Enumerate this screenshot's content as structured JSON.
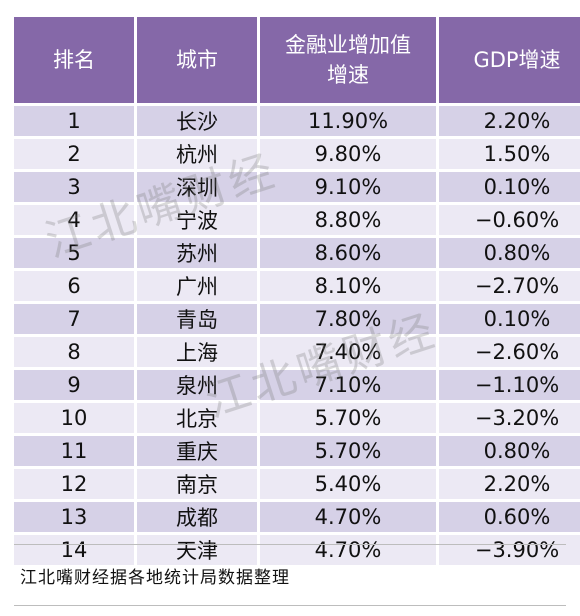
{
  "table": {
    "headers": [
      "排名",
      "城市",
      "金融业增加值增速",
      "GDP增速"
    ],
    "header_fin_line1": "金融业增加值",
    "header_fin_line2": "增速",
    "rows": [
      {
        "rank": "1",
        "city": "长沙",
        "fin": "11.90%",
        "gdp": "2.20%"
      },
      {
        "rank": "2",
        "city": "杭州",
        "fin": "9.80%",
        "gdp": "1.50%"
      },
      {
        "rank": "3",
        "city": "深圳",
        "fin": "9.10%",
        "gdp": "0.10%"
      },
      {
        "rank": "4",
        "city": "宁波",
        "fin": "8.80%",
        "gdp": "−0.60%"
      },
      {
        "rank": "5",
        "city": "苏州",
        "fin": "8.60%",
        "gdp": "0.80%"
      },
      {
        "rank": "6",
        "city": "广州",
        "fin": "8.10%",
        "gdp": "−2.70%"
      },
      {
        "rank": "7",
        "city": "青岛",
        "fin": "7.80%",
        "gdp": "0.10%"
      },
      {
        "rank": "8",
        "city": "上海",
        "fin": "7.40%",
        "gdp": "−2.60%"
      },
      {
        "rank": "9",
        "city": "泉州",
        "fin": "7.10%",
        "gdp": "−1.10%"
      },
      {
        "rank": "10",
        "city": "北京",
        "fin": "5.70%",
        "gdp": "−3.20%"
      },
      {
        "rank": "11",
        "city": "重庆",
        "fin": "5.70%",
        "gdp": "0.80%"
      },
      {
        "rank": "12",
        "city": "南京",
        "fin": "5.40%",
        "gdp": "2.20%"
      },
      {
        "rank": "13",
        "city": "成都",
        "fin": "4.70%",
        "gdp": "0.60%"
      },
      {
        "rank": "14",
        "city": "天津",
        "fin": "4.70%",
        "gdp": "−3.90%"
      }
    ]
  },
  "footer": {
    "source": "江北嘴财经据各地统计局数据整理"
  },
  "watermark": {
    "text": "江北嘴财经"
  },
  "colors": {
    "header_bg": "#8568a8",
    "row_odd": "#d6d1e7",
    "row_even": "#ece9f4"
  }
}
